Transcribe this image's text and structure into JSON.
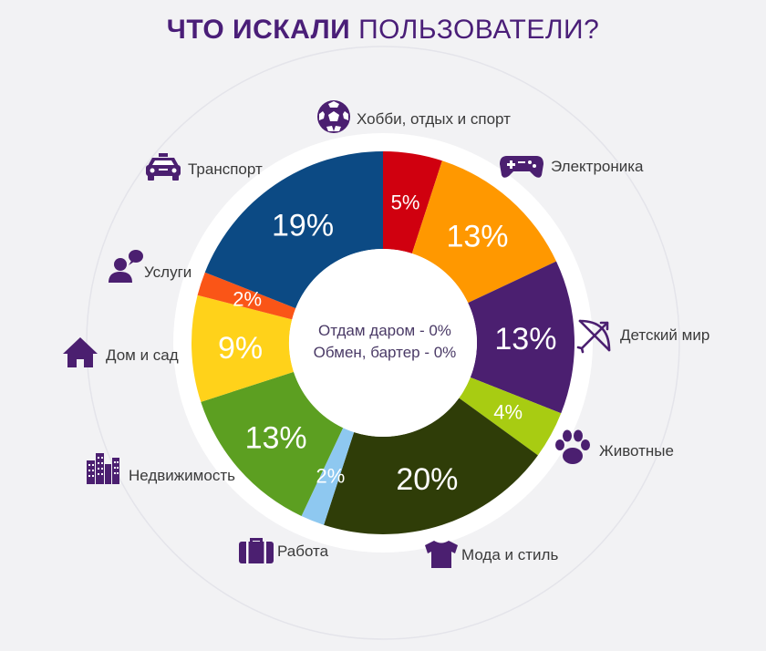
{
  "header": {
    "title_bold": "ЧТО ИСКАЛИ",
    "title_rest": "ПОЛЬЗОВАТЕЛИ?"
  },
  "center": {
    "line1": "Отдам даром - 0%",
    "line2": "Обмен, бартер - 0%"
  },
  "chart_data": {
    "type": "pie",
    "title": "ЧТО ИСКАЛИ ПОЛЬЗОВАТЕЛИ?",
    "slices": [
      {
        "label": "Хобби, отдых и спорт",
        "value": 5,
        "display": "5%",
        "color": "#d0000f",
        "icon": "soccer-ball-icon"
      },
      {
        "label": "Электроника",
        "value": 13,
        "display": "13%",
        "color": "#ff9800",
        "icon": "gamepad-icon"
      },
      {
        "label": "Детский мир",
        "value": 13,
        "display": "13%",
        "color": "#4b1f70",
        "icon": "bow-arrow-icon"
      },
      {
        "label": "Животные",
        "value": 4,
        "display": "4%",
        "color": "#a8cc12",
        "icon": "paw-icon"
      },
      {
        "label": "Мода и стиль",
        "value": 20,
        "display": "20%",
        "color": "#2f3d08",
        "icon": "tshirt-icon"
      },
      {
        "label": "Работа",
        "value": 2,
        "display": "2%",
        "color": "#8ec8f0",
        "icon": "briefcase-icon"
      },
      {
        "label": "Недвижимость",
        "value": 13,
        "display": "13%",
        "color": "#5c9f21",
        "icon": "buildings-icon"
      },
      {
        "label": "Дом и сад",
        "value": 9,
        "display": "9%",
        "color": "#ffd21a",
        "icon": "house-icon"
      },
      {
        "label": "Услуги",
        "value": 2,
        "display": "2%",
        "color": "#fa5517",
        "icon": "person-chat-icon"
      },
      {
        "label": "Транспорт",
        "value": 19,
        "display": "19%",
        "color": "#0c4a84",
        "icon": "taxi-icon"
      }
    ]
  }
}
